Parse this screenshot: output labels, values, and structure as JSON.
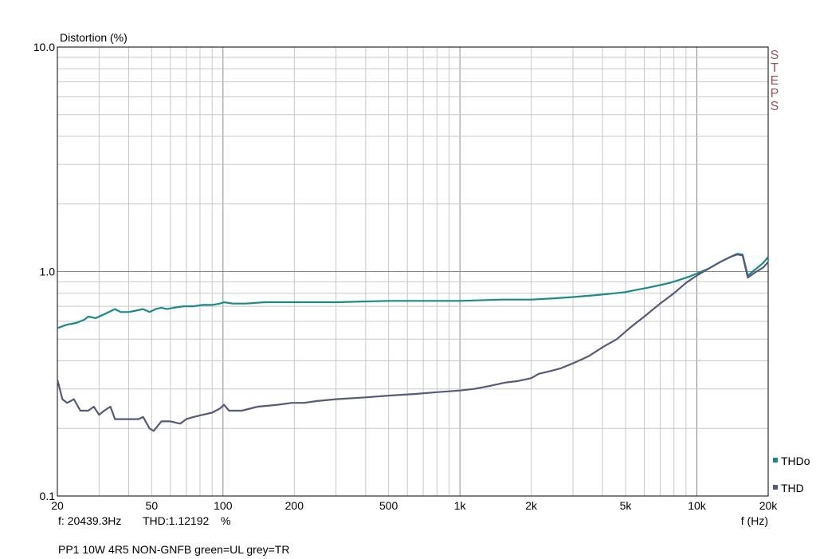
{
  "chart_data": {
    "type": "line",
    "title": "",
    "ylabel": "Distortion (%)",
    "xlabel": "f (Hz)",
    "x_scale": "log",
    "y_scale": "log",
    "xlim": [
      20,
      20000
    ],
    "ylim": [
      0.1,
      10.0
    ],
    "x_ticks": [
      {
        "v": 20,
        "label": "20"
      },
      {
        "v": 50,
        "label": "50"
      },
      {
        "v": 100,
        "label": "100"
      },
      {
        "v": 200,
        "label": "200"
      },
      {
        "v": 500,
        "label": "500"
      },
      {
        "v": 1000,
        "label": "1k"
      },
      {
        "v": 2000,
        "label": "2k"
      },
      {
        "v": 5000,
        "label": "5k"
      },
      {
        "v": 10000,
        "label": "10k"
      },
      {
        "v": 20000,
        "label": "20k"
      }
    ],
    "y_ticks": [
      {
        "v": 0.1,
        "label": "0.1"
      },
      {
        "v": 1.0,
        "label": "1.0"
      },
      {
        "v": 10.0,
        "label": "10.0"
      }
    ],
    "grid": true,
    "legend_position": "bottom-right",
    "side_label": "STEPS",
    "series": [
      {
        "name": "THDo",
        "color": "#1a8a88",
        "points": [
          [
            20,
            0.56
          ],
          [
            22,
            0.58
          ],
          [
            24,
            0.59
          ],
          [
            26,
            0.61
          ],
          [
            27,
            0.63
          ],
          [
            29,
            0.62
          ],
          [
            31,
            0.64
          ],
          [
            33,
            0.66
          ],
          [
            35,
            0.68
          ],
          [
            37,
            0.66
          ],
          [
            40,
            0.66
          ],
          [
            43,
            0.67
          ],
          [
            46,
            0.68
          ],
          [
            49,
            0.66
          ],
          [
            52,
            0.68
          ],
          [
            55,
            0.69
          ],
          [
            58,
            0.68
          ],
          [
            62,
            0.69
          ],
          [
            68,
            0.7
          ],
          [
            75,
            0.7
          ],
          [
            82,
            0.71
          ],
          [
            90,
            0.71
          ],
          [
            97,
            0.72
          ],
          [
            101,
            0.73
          ],
          [
            110,
            0.72
          ],
          [
            125,
            0.72
          ],
          [
            150,
            0.73
          ],
          [
            200,
            0.73
          ],
          [
            300,
            0.73
          ],
          [
            500,
            0.74
          ],
          [
            700,
            0.74
          ],
          [
            1000,
            0.74
          ],
          [
            1500,
            0.75
          ],
          [
            2000,
            0.75
          ],
          [
            2500,
            0.76
          ],
          [
            3000,
            0.77
          ],
          [
            3500,
            0.78
          ],
          [
            4000,
            0.79
          ],
          [
            4500,
            0.8
          ],
          [
            5000,
            0.81
          ],
          [
            5600,
            0.83
          ],
          [
            6300,
            0.85
          ],
          [
            7000,
            0.87
          ],
          [
            7700,
            0.89
          ],
          [
            8500,
            0.92
          ],
          [
            9300,
            0.95
          ],
          [
            10000,
            0.98
          ],
          [
            11200,
            1.03
          ],
          [
            12500,
            1.1
          ],
          [
            13800,
            1.16
          ],
          [
            14800,
            1.2
          ],
          [
            15600,
            1.19
          ],
          [
            16400,
            0.96
          ],
          [
            17600,
            1.02
          ],
          [
            19000,
            1.09
          ],
          [
            20000,
            1.16
          ]
        ]
      },
      {
        "name": "THD",
        "color": "#555a78",
        "points": [
          [
            20,
            0.33
          ],
          [
            21,
            0.27
          ],
          [
            22,
            0.26
          ],
          [
            23.5,
            0.27
          ],
          [
            25,
            0.24
          ],
          [
            27,
            0.24
          ],
          [
            28.5,
            0.25
          ],
          [
            30,
            0.23
          ],
          [
            31.5,
            0.24
          ],
          [
            33.5,
            0.25
          ],
          [
            35,
            0.22
          ],
          [
            38,
            0.22
          ],
          [
            41,
            0.22
          ],
          [
            44,
            0.22
          ],
          [
            46,
            0.225
          ],
          [
            49,
            0.2
          ],
          [
            51,
            0.195
          ],
          [
            53,
            0.205
          ],
          [
            55,
            0.215
          ],
          [
            60,
            0.215
          ],
          [
            66,
            0.21
          ],
          [
            70,
            0.22
          ],
          [
            75,
            0.225
          ],
          [
            82,
            0.23
          ],
          [
            90,
            0.235
          ],
          [
            97,
            0.245
          ],
          [
            101,
            0.255
          ],
          [
            106,
            0.24
          ],
          [
            120,
            0.24
          ],
          [
            140,
            0.25
          ],
          [
            170,
            0.255
          ],
          [
            195,
            0.26
          ],
          [
            220,
            0.26
          ],
          [
            250,
            0.265
          ],
          [
            300,
            0.27
          ],
          [
            400,
            0.275
          ],
          [
            500,
            0.28
          ],
          [
            650,
            0.285
          ],
          [
            800,
            0.29
          ],
          [
            1000,
            0.295
          ],
          [
            1150,
            0.3
          ],
          [
            1350,
            0.31
          ],
          [
            1550,
            0.32
          ],
          [
            1750,
            0.325
          ],
          [
            2000,
            0.335
          ],
          [
            2150,
            0.35
          ],
          [
            2400,
            0.36
          ],
          [
            2650,
            0.37
          ],
          [
            3000,
            0.39
          ],
          [
            3500,
            0.42
          ],
          [
            4000,
            0.46
          ],
          [
            4600,
            0.5
          ],
          [
            5200,
            0.56
          ],
          [
            6000,
            0.63
          ],
          [
            7000,
            0.72
          ],
          [
            8000,
            0.8
          ],
          [
            9000,
            0.89
          ],
          [
            10000,
            0.96
          ],
          [
            11200,
            1.03
          ],
          [
            12500,
            1.1
          ],
          [
            13800,
            1.16
          ],
          [
            14800,
            1.19
          ],
          [
            15600,
            1.18
          ],
          [
            16400,
            0.94
          ],
          [
            17600,
            0.99
          ],
          [
            19000,
            1.04
          ],
          [
            20000,
            1.1
          ]
        ]
      }
    ]
  },
  "cursor": {
    "freq_text": "f: 20439.3Hz",
    "thd_text": "THD:1.12192",
    "unit_text": "%"
  },
  "caption": "PP1 10W 4R5 NON-GNFB green=UL grey=TR"
}
